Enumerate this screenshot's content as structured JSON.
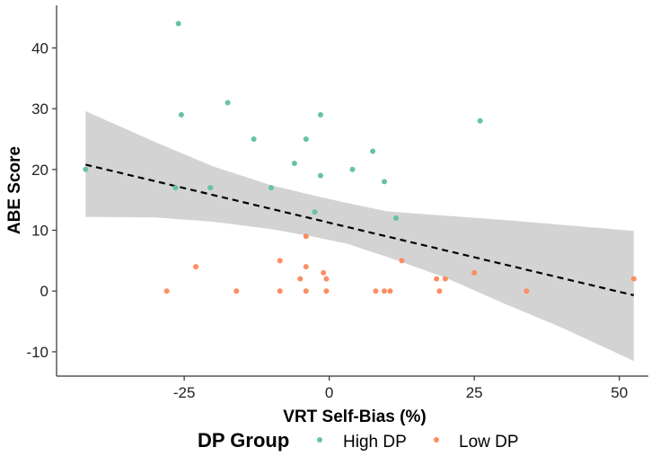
{
  "chart_data": {
    "type": "scatter",
    "xlabel": "VRT Self-Bias (%)",
    "ylabel": "ABE Score",
    "xlim": [
      -47,
      55
    ],
    "ylim": [
      -14,
      47
    ],
    "x_ticks": [
      -25,
      0,
      25,
      50
    ],
    "x_tick_labels": [
      "-25",
      "0",
      "25",
      "50"
    ],
    "y_ticks": [
      -10,
      0,
      10,
      20,
      30,
      40
    ],
    "y_tick_labels": [
      "-10",
      "0",
      "10",
      "20",
      "30",
      "40"
    ],
    "grid": false,
    "legend": {
      "title": "DP Group",
      "placement": "bottom",
      "entries": [
        "High DP",
        "Low DP"
      ]
    },
    "series": [
      {
        "name": "High DP",
        "color": "#66c2a5",
        "points": [
          [
            -42,
            20
          ],
          [
            -26,
            44
          ],
          [
            -25.5,
            29
          ],
          [
            -17.5,
            31
          ],
          [
            -13,
            25
          ],
          [
            -26.5,
            17
          ],
          [
            -20.5,
            17
          ],
          [
            -10,
            17
          ],
          [
            -6,
            21
          ],
          [
            -4,
            25
          ],
          [
            -2.5,
            13
          ],
          [
            -1.5,
            29
          ],
          [
            -1.5,
            19
          ],
          [
            4,
            20
          ],
          [
            7.5,
            23
          ],
          [
            9.5,
            18
          ],
          [
            11.5,
            12
          ],
          [
            26,
            28
          ]
        ]
      },
      {
        "name": "Low DP",
        "color": "#fc8d62",
        "points": [
          [
            -28,
            0
          ],
          [
            -23,
            4
          ],
          [
            -16,
            0
          ],
          [
            -8.5,
            5
          ],
          [
            -8.5,
            0
          ],
          [
            -5,
            2
          ],
          [
            -4,
            9
          ],
          [
            -4,
            4
          ],
          [
            -4,
            0
          ],
          [
            -1,
            3
          ],
          [
            -0.5,
            2
          ],
          [
            -0.5,
            0
          ],
          [
            8,
            0
          ],
          [
            9.5,
            0
          ],
          [
            10.5,
            0
          ],
          [
            12.5,
            5
          ],
          [
            18.5,
            2
          ],
          [
            19,
            0
          ],
          [
            20,
            2
          ],
          [
            25,
            3
          ],
          [
            34,
            0
          ],
          [
            52.5,
            2
          ]
        ]
      }
    ],
    "trend_line": {
      "style": "dashed",
      "color": "#000000",
      "points": [
        [
          -42,
          20.8
        ],
        [
          52.5,
          -0.7
        ]
      ]
    },
    "confidence_band": {
      "color": "#d3d3d3",
      "x": [
        -42,
        -30,
        -20,
        -10,
        -3,
        3,
        10,
        20,
        30,
        40,
        52.5
      ],
      "upper": [
        29.6,
        24.5,
        20.5,
        17.4,
        15.8,
        14.5,
        13.1,
        12.4,
        11.7,
        10.9,
        9.9
      ],
      "lower": [
        12.2,
        12.1,
        11.4,
        10.2,
        9.0,
        7.8,
        5.6,
        2.2,
        -2.0,
        -6.0,
        -11.5
      ]
    }
  }
}
